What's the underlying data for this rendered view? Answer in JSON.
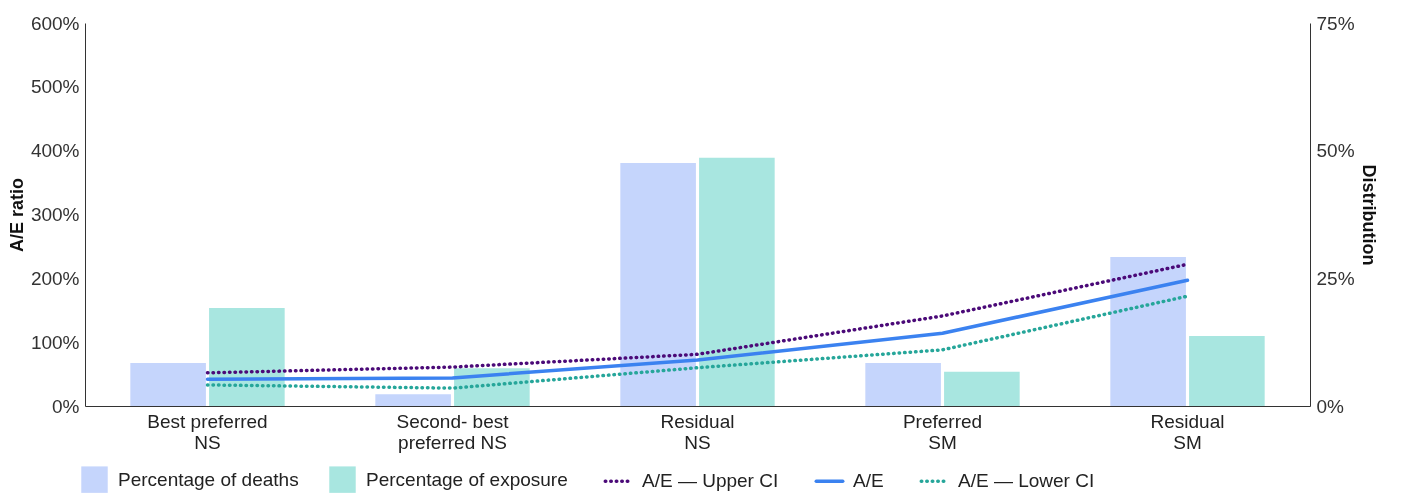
{
  "chart_data": {
    "type": "bar",
    "categories": [
      "Best preferred\nNS",
      "Second- best\npreferred NS",
      "Residual\nNS",
      "Preferred\nSM",
      "Residual\nSM"
    ],
    "ylabel": "A/E ratio",
    "y2label": "Distribution",
    "ylim": [
      0,
      600
    ],
    "yticks": [
      {
        "value": 0,
        "label": "0%"
      },
      {
        "value": 100,
        "label": "100%"
      },
      {
        "value": 200,
        "label": "200%"
      },
      {
        "value": 300,
        "label": "300%"
      },
      {
        "value": 400,
        "label": "400%"
      },
      {
        "value": 500,
        "label": "500%"
      },
      {
        "value": 600,
        "label": "600%"
      }
    ],
    "y2lim": [
      0,
      75
    ],
    "y2ticks": [
      {
        "value": 0,
        "label": "0%"
      },
      {
        "value": 25,
        "label": "25%"
      },
      {
        "value": 50,
        "label": "50%"
      },
      {
        "value": 75,
        "label": "75%"
      }
    ],
    "series": [
      {
        "name": "Percentage of deaths",
        "axis": "y2",
        "color": "#c5d5fc",
        "values": [
          8.4,
          2.3,
          47.6,
          8.4,
          29.2
        ]
      },
      {
        "name": "Percentage of exposure",
        "axis": "y2",
        "color": "#a8e6e0",
        "values": [
          19.2,
          7.4,
          48.6,
          6.7,
          13.7
        ]
      },
      {
        "name": "A/E — Upper CI",
        "type": "line",
        "line_style": "dotted",
        "color": "#4b0a78",
        "values": [
          52,
          61,
          81,
          141,
          222
        ]
      },
      {
        "name": "A/E",
        "type": "line",
        "line_style": "solid",
        "color": "#3b82f0",
        "values": [
          42,
          44,
          72,
          114,
          197
        ]
      },
      {
        "name": "A/E — Lower CI",
        "type": "line",
        "line_style": "dotted",
        "color": "#26a69a",
        "values": [
          33,
          28,
          60,
          88,
          172
        ]
      }
    ],
    "grid": false,
    "legend": "bottom"
  }
}
